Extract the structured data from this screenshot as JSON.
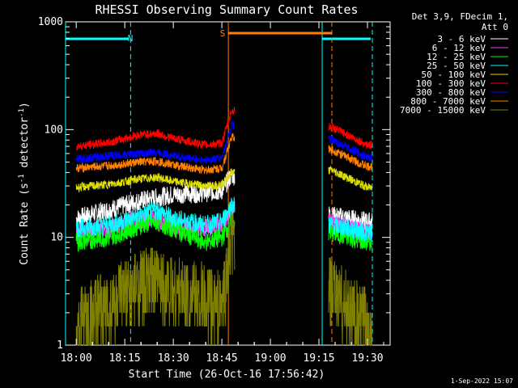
{
  "chart_data": {
    "type": "line",
    "title": "RHESSI Observing Summary Count Rates",
    "xlabel": "Start Time (26-Oct-16 17:56:42)",
    "ylabel_main": "Count Rate (s",
    "ylabel_sup1": "-1",
    "ylabel_mid": " detector",
    "ylabel_sup2": "-1",
    "ylabel_end": ")",
    "timestamp": "1-Sep-2022 15:07",
    "x_ticks": [
      "18:00",
      "18:15",
      "18:30",
      "18:45",
      "19:00",
      "19:15",
      "19:30"
    ],
    "x_tick_minutes": [
      0,
      15,
      30,
      45,
      60,
      75,
      90
    ],
    "xlim_minutes": [
      -3.3,
      97.0
    ],
    "y_ticks": [
      "1",
      "10",
      "100",
      "1000"
    ],
    "y_tick_values": [
      1,
      10,
      100,
      1000
    ],
    "ylim": [
      1,
      1000
    ],
    "yscale": "log",
    "legend_header": [
      "Det 3,9, FDecim 1,",
      "Att 0"
    ],
    "legend_position": "right",
    "annotations": {
      "night_label": "N",
      "saa_label": "S",
      "night_intervals_minutes": [
        [
          -3.3,
          16.8
        ],
        [
          76.0,
          91.5
        ]
      ],
      "saa_interval_minutes": [
        47.0,
        79.0
      ]
    },
    "data_gap_minutes": [
      49.0,
      78.0
    ],
    "series": [
      {
        "name": "3 - 6 keV",
        "color": "#ffffff",
        "values": [
          [
            0,
            15
          ],
          [
            10,
            18
          ],
          [
            20,
            22
          ],
          [
            30,
            25
          ],
          [
            40,
            26
          ],
          [
            45,
            27
          ],
          [
            48,
            38
          ],
          [
            79,
            16
          ],
          [
            90,
            14
          ],
          [
            91.5,
            14
          ]
        ]
      },
      {
        "name": "6 - 12 keV",
        "color": "#ff33ff",
        "values": [
          [
            0,
            11
          ],
          [
            10,
            12
          ],
          [
            20,
            15
          ],
          [
            25,
            15
          ],
          [
            30,
            13
          ],
          [
            40,
            12
          ],
          [
            45,
            13
          ],
          [
            48,
            18
          ],
          [
            79,
            14
          ],
          [
            90,
            11
          ],
          [
            91.5,
            11
          ]
        ]
      },
      {
        "name": "12 - 25 keV",
        "color": "#00ff00",
        "values": [
          [
            0,
            9
          ],
          [
            10,
            10
          ],
          [
            20,
            13
          ],
          [
            25,
            14
          ],
          [
            30,
            12
          ],
          [
            40,
            9
          ],
          [
            45,
            10
          ],
          [
            48,
            14
          ],
          [
            79,
            11
          ],
          [
            90,
            9
          ],
          [
            91.5,
            9
          ]
        ]
      },
      {
        "name": "25 - 50 keV",
        "color": "#00ffff",
        "values": [
          [
            0,
            12
          ],
          [
            10,
            13
          ],
          [
            20,
            16
          ],
          [
            25,
            18
          ],
          [
            30,
            15
          ],
          [
            40,
            13
          ],
          [
            45,
            14
          ],
          [
            48,
            20
          ],
          [
            79,
            13
          ],
          [
            90,
            11
          ],
          [
            91.5,
            11
          ]
        ]
      },
      {
        "name": "50 - 100 keV",
        "color": "#dddd00",
        "values": [
          [
            0,
            29
          ],
          [
            10,
            31
          ],
          [
            20,
            35
          ],
          [
            25,
            36
          ],
          [
            30,
            33
          ],
          [
            40,
            30
          ],
          [
            45,
            31
          ],
          [
            48,
            40
          ],
          [
            79,
            42
          ],
          [
            90,
            29
          ],
          [
            91.5,
            29
          ]
        ]
      },
      {
        "name": "100 - 300 keV",
        "color": "#ff0000",
        "values": [
          [
            0,
            70
          ],
          [
            10,
            76
          ],
          [
            20,
            90
          ],
          [
            25,
            92
          ],
          [
            30,
            83
          ],
          [
            40,
            72
          ],
          [
            45,
            75
          ],
          [
            48,
            150
          ],
          [
            79,
            105
          ],
          [
            90,
            72
          ],
          [
            91.5,
            72
          ]
        ]
      },
      {
        "name": "300 - 800 keV",
        "color": "#0000ff",
        "values": [
          [
            0,
            53
          ],
          [
            10,
            57
          ],
          [
            20,
            60
          ],
          [
            25,
            62
          ],
          [
            30,
            57
          ],
          [
            40,
            52
          ],
          [
            45,
            55
          ],
          [
            48,
            110
          ],
          [
            79,
            80
          ],
          [
            90,
            55
          ],
          [
            91.5,
            55
          ]
        ]
      },
      {
        "name": "800 - 7000 keV",
        "color": "#ff7f00",
        "values": [
          [
            0,
            44
          ],
          [
            10,
            46
          ],
          [
            20,
            50
          ],
          [
            25,
            51
          ],
          [
            30,
            47
          ],
          [
            40,
            42
          ],
          [
            45,
            44
          ],
          [
            48,
            85
          ],
          [
            79,
            65
          ],
          [
            90,
            45
          ],
          [
            91.5,
            45
          ]
        ]
      },
      {
        "name": "7000 - 15000 keV",
        "color": "#808000",
        "values": [
          [
            0,
            1.6
          ],
          [
            10,
            2.2
          ],
          [
            20,
            3.5
          ],
          [
            25,
            3.8
          ],
          [
            30,
            3.2
          ],
          [
            40,
            2.6
          ],
          [
            45,
            2.2
          ],
          [
            48,
            9
          ],
          [
            79,
            3
          ],
          [
            90,
            1.5
          ],
          [
            91.5,
            1.5
          ]
        ]
      }
    ]
  }
}
